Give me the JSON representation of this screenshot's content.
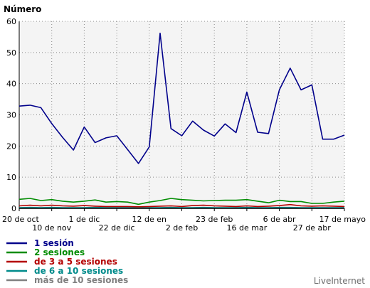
{
  "chart_data": {
    "type": "line",
    "title": "Número",
    "ylim": [
      0,
      60
    ],
    "y_ticks": [
      0,
      10,
      20,
      30,
      40,
      50,
      60
    ],
    "x_ticks_row1": [
      "20 de oct",
      "1 de dic",
      "12 de en",
      "23 de feb",
      "6 de abr",
      "17 de mayo"
    ],
    "x_ticks_row2": [
      "10 de nov",
      "22 de dic",
      "2 de feb",
      "16 de mar",
      "27 de abr"
    ],
    "grid": true,
    "legend_position": "bottom-left",
    "series": [
      {
        "name": "1 sesión",
        "color": "#00008b",
        "values": [
          32.8,
          33.1,
          32.3,
          27.2,
          22.8,
          18.7,
          26.1,
          21.1,
          22.6,
          23.3,
          18.9,
          14.4,
          19.7,
          56.2,
          25.6,
          23.3,
          28.0,
          25.1,
          23.2,
          27.1,
          24.3,
          37.3,
          24.4,
          24.0,
          38.0,
          45.0,
          38.0,
          39.6,
          22.2,
          22.2,
          23.5
        ]
      },
      {
        "name": "2 sesiones",
        "color": "#008c00",
        "values": [
          2.9,
          3.2,
          2.5,
          2.8,
          2.3,
          2.0,
          2.3,
          2.7,
          2.0,
          2.2,
          2.0,
          1.3,
          2.0,
          2.5,
          3.2,
          2.8,
          2.6,
          2.4,
          2.5,
          2.6,
          2.6,
          2.8,
          2.3,
          1.8,
          2.6,
          2.2,
          2.2,
          1.6,
          1.6,
          2.0,
          2.3
        ]
      },
      {
        "name": "de 3 a 5 sesiones",
        "color": "#b40000",
        "values": [
          0.8,
          1.0,
          0.8,
          1.0,
          0.8,
          0.7,
          0.9,
          0.7,
          0.6,
          0.6,
          0.6,
          0.5,
          0.6,
          0.7,
          0.8,
          0.6,
          0.9,
          1.0,
          0.8,
          0.7,
          0.6,
          0.8,
          0.6,
          0.7,
          0.9,
          1.2,
          0.8,
          0.7,
          0.8,
          0.7,
          0.6
        ]
      },
      {
        "name": "de 6 a 10 sesiones",
        "color": "#008b8b",
        "values": [
          0.2,
          0.3,
          0.2,
          0.3,
          0.2,
          0.2,
          0.2,
          0.3,
          0.2,
          0.2,
          0.2,
          0.1,
          0.2,
          0.2,
          0.3,
          0.2,
          0.2,
          0.3,
          0.2,
          0.2,
          0.2,
          0.3,
          0.2,
          0.2,
          0.3,
          0.3,
          0.2,
          0.2,
          0.2,
          0.2,
          0.2
        ]
      },
      {
        "name": "más de 10 sesiones",
        "color": "#808080",
        "values": [
          0.1,
          0.1,
          0.1,
          0.1,
          0.1,
          0.1,
          0.1,
          0.1,
          0.1,
          0.1,
          0.1,
          0.1,
          0.1,
          0.1,
          0.1,
          0.1,
          0.1,
          0.1,
          0.1,
          0.1,
          0.1,
          0.1,
          0.1,
          0.1,
          0.1,
          0.1,
          0.1,
          0.1,
          0.1,
          0.1,
          0.1
        ]
      }
    ]
  },
  "brand": "LiveInternet"
}
